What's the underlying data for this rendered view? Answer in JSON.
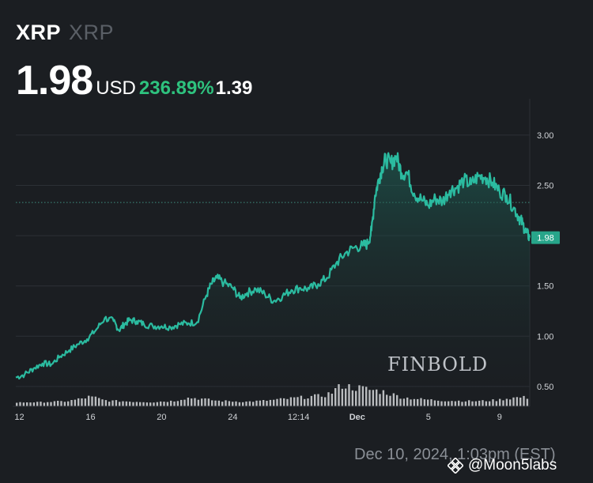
{
  "header": {
    "symbol": "XRP",
    "name": "XRP",
    "price": "1.98",
    "currency": "USD",
    "change_pct": "236.89%",
    "change_abs": "1.39"
  },
  "colors": {
    "background": "#1b1e22",
    "line": "#2bbba0",
    "positive": "#2ec27e",
    "grid": "#2c3036",
    "volume": "#d6d8db"
  },
  "timestamp": "Dec 10, 2024, 1:03pm (EST)",
  "watermark": "@Moon5labs",
  "brand": "FINBOLD",
  "chart_data": {
    "type": "line",
    "title": "",
    "xlabel": "",
    "ylabel": "",
    "ylim": [
      0.35,
      3.4
    ],
    "yticks": [
      "0.50",
      "1.00",
      "1.50",
      "2.00",
      "2.50",
      "3.00"
    ],
    "xticks": [
      {
        "label": "12",
        "x": 11
      },
      {
        "label": "16",
        "x": 15
      },
      {
        "label": "20",
        "x": 19
      },
      {
        "label": "24",
        "x": 23
      },
      {
        "label": "12:14",
        "x": 26.7
      },
      {
        "label": "Dec",
        "x": 30
      },
      {
        "label": "5",
        "x": 34
      },
      {
        "label": "9",
        "x": 38
      }
    ],
    "xlim": [
      10.8,
      39.7
    ],
    "current_label": "1.98",
    "reference_line": 2.33,
    "series": [
      {
        "x": [
          10.8,
          11.3,
          11.8,
          12.3,
          12.8,
          13.3,
          13.8,
          14.3,
          14.8,
          15.3,
          15.8,
          16.3,
          16.6,
          16.9,
          17.2,
          17.6,
          18.0,
          18.5,
          19.0,
          19.5,
          20.0,
          20.5,
          21.0,
          21.5,
          21.8,
          22.1,
          22.5,
          23.0,
          23.4,
          23.8,
          24.3,
          24.8,
          25.3,
          25.8,
          26.3,
          26.8,
          27.3,
          27.8,
          28.3,
          28.8,
          29.3,
          29.8,
          30.3,
          30.6,
          30.8,
          31.0,
          31.2,
          31.4,
          31.6,
          31.9,
          32.2,
          32.5,
          32.8,
          33.2,
          33.6,
          34.0,
          34.4,
          34.8,
          35.2,
          35.6,
          36.0,
          36.4,
          36.8,
          37.2,
          37.6,
          38.0,
          38.4,
          38.8,
          39.1,
          39.3,
          39.5,
          39.7
        ],
        "values": [
          0.59,
          0.62,
          0.68,
          0.73,
          0.72,
          0.8,
          0.86,
          0.92,
          0.97,
          1.06,
          1.18,
          1.15,
          1.06,
          1.12,
          1.16,
          1.15,
          1.12,
          1.1,
          1.1,
          1.09,
          1.12,
          1.13,
          1.14,
          1.4,
          1.52,
          1.58,
          1.53,
          1.48,
          1.38,
          1.43,
          1.47,
          1.42,
          1.35,
          1.4,
          1.46,
          1.48,
          1.47,
          1.52,
          1.58,
          1.72,
          1.82,
          1.88,
          1.9,
          1.92,
          2.05,
          2.4,
          2.55,
          2.68,
          2.76,
          2.72,
          2.79,
          2.62,
          2.63,
          2.42,
          2.36,
          2.3,
          2.37,
          2.34,
          2.45,
          2.48,
          2.55,
          2.51,
          2.59,
          2.58,
          2.53,
          2.44,
          2.4,
          2.28,
          2.18,
          2.12,
          2.03,
          1.98
        ]
      }
    ],
    "volume": [
      1,
      1.1,
      1.2,
      1.1,
      1.3,
      1.4,
      1.5,
      1.6,
      2.2,
      2.8,
      3.6,
      3.2,
      2.2,
      1.8,
      1.7,
      1.6,
      1.5,
      1.4,
      1.3,
      1.2,
      1.5,
      1.6,
      1.8,
      2.8,
      3.2,
      3.0,
      2.6,
      2.2,
      1.8,
      1.7,
      1.6,
      1.5,
      1.4,
      1.6,
      1.8,
      2.0,
      2.3,
      2.6,
      2.9,
      3.2,
      3.5,
      3.8,
      4.0,
      4.5,
      6.0,
      9.5,
      8.5,
      8.0,
      7.5,
      7.0,
      6.5,
      6.0,
      5.0,
      4.0,
      3.2,
      3.0,
      2.6,
      2.4,
      2.2,
      2.0,
      1.9,
      1.8,
      1.8,
      1.7,
      1.7,
      1.8,
      2.0,
      2.2,
      2.8,
      3.2,
      3.4,
      3.3
    ]
  }
}
